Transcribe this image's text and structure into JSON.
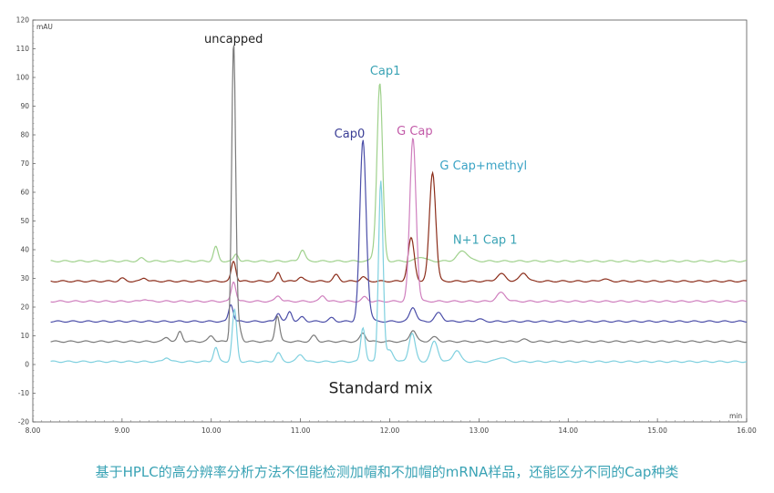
{
  "chart_data": {
    "type": "line",
    "title": "",
    "xlabel": "min",
    "ylabel": "mAU",
    "xlim": [
      8.0,
      16.0
    ],
    "ylim": [
      -20,
      120
    ],
    "x_ticks": [
      8.0,
      9.0,
      10.0,
      11.0,
      12.0,
      13.0,
      14.0,
      15.0,
      16.0
    ],
    "x_tick_labels": [
      "8.00",
      "9.00",
      "10.00",
      "11.00",
      "12.00",
      "13.00",
      "14.00",
      "15.00",
      "16.00"
    ],
    "y_ticks": [
      -20,
      -10,
      0,
      10,
      20,
      30,
      40,
      50,
      60,
      70,
      80,
      90,
      100,
      110,
      120
    ],
    "y_tick_labels": [
      "-20",
      "-10",
      "0",
      "10",
      "20",
      "30",
      "40",
      "50",
      "60",
      "70",
      "80",
      "90",
      "100",
      "110",
      "120"
    ],
    "series": [
      {
        "color": "#9fd18c",
        "baseline": 36,
        "peaks": [
          [
            9.22,
            1.0,
            0.03
          ],
          [
            10.05,
            5,
            0.025
          ],
          [
            10.28,
            2.5,
            0.025
          ],
          [
            11.02,
            4,
            0.03
          ],
          [
            11.87,
            8,
            0.04
          ],
          [
            11.89,
            55,
            0.03
          ],
          [
            12.82,
            3.5,
            0.06
          ],
          [
            12.35,
            1.5,
            0.05
          ]
        ]
      },
      {
        "color": "#8b2d1a",
        "baseline": 29,
        "peaks": [
          [
            9.0,
            1.0,
            0.03
          ],
          [
            9.25,
            1.2,
            0.03
          ],
          [
            10.25,
            7,
            0.025
          ],
          [
            10.75,
            3,
            0.025
          ],
          [
            11.0,
            1.5,
            0.03
          ],
          [
            11.4,
            2.2,
            0.03
          ],
          [
            11.7,
            1.5,
            0.03
          ],
          [
            12.24,
            15,
            0.035
          ],
          [
            12.48,
            38,
            0.035
          ],
          [
            13.25,
            2.5,
            0.05
          ],
          [
            13.5,
            3,
            0.04
          ],
          [
            14.4,
            0.8,
            0.04
          ]
        ]
      },
      {
        "color": "#cf7fbe",
        "baseline": 22,
        "peaks": [
          [
            9.25,
            0.8,
            0.03
          ],
          [
            10.25,
            7,
            0.025
          ],
          [
            10.75,
            2,
            0.03
          ],
          [
            11.25,
            2,
            0.03
          ],
          [
            11.72,
            1.5,
            0.03
          ],
          [
            12.26,
            57,
            0.035
          ],
          [
            13.25,
            3,
            0.05
          ]
        ]
      },
      {
        "color": "#4b4ea8",
        "baseline": 15,
        "peaks": [
          [
            10.22,
            6,
            0.025
          ],
          [
            10.75,
            3,
            0.025
          ],
          [
            10.88,
            3.5,
            0.025
          ],
          [
            11.02,
            1.5,
            0.03
          ],
          [
            11.35,
            1.2,
            0.03
          ],
          [
            11.7,
            63,
            0.035
          ],
          [
            11.78,
            2,
            0.03
          ],
          [
            12.26,
            5,
            0.035
          ],
          [
            12.55,
            3,
            0.04
          ],
          [
            13.0,
            0.8,
            0.04
          ]
        ]
      },
      {
        "color": "#7a7a7a",
        "baseline": 8,
        "peaks": [
          [
            9.65,
            3.5,
            0.025
          ],
          [
            9.5,
            1.5,
            0.03
          ],
          [
            10.0,
            2,
            0.03
          ],
          [
            10.25,
            103,
            0.022
          ],
          [
            10.3,
            6,
            0.03
          ],
          [
            10.74,
            9,
            0.025
          ],
          [
            11.15,
            2,
            0.03
          ],
          [
            11.7,
            3,
            0.03
          ],
          [
            12.26,
            4,
            0.035
          ],
          [
            12.5,
            1.5,
            0.04
          ],
          [
            13.5,
            0.7,
            0.04
          ]
        ]
      },
      {
        "color": "#7fd0df",
        "baseline": 1,
        "peaks": [
          [
            9.5,
            1.5,
            0.03
          ],
          [
            10.05,
            5,
            0.025
          ],
          [
            10.26,
            18,
            0.025
          ],
          [
            10.75,
            3,
            0.03
          ],
          [
            11.0,
            2.5,
            0.035
          ],
          [
            11.7,
            12,
            0.025
          ],
          [
            11.9,
            63,
            0.025
          ],
          [
            12.0,
            4,
            0.04
          ],
          [
            12.25,
            10,
            0.035
          ],
          [
            12.5,
            7,
            0.04
          ],
          [
            12.75,
            4,
            0.04
          ],
          [
            13.25,
            1.5,
            0.05
          ]
        ]
      }
    ],
    "annotations": [
      {
        "text": "uncapped",
        "x": 10.25,
        "y": 112,
        "color": "#222222"
      },
      {
        "text": "Cap1",
        "x": 11.95,
        "y": 101,
        "color": "#3aa3b5"
      },
      {
        "text": "Cap0",
        "x": 11.55,
        "y": 79,
        "color": "#3a3d95"
      },
      {
        "text": "G Cap",
        "x": 12.28,
        "y": 80,
        "color": "#c25aa8"
      },
      {
        "text": "G Cap+methyl",
        "x": 13.05,
        "y": 68,
        "color": "#3aa3c5"
      },
      {
        "text": "N+1 Cap 1",
        "x": 13.07,
        "y": 42,
        "color": "#3aa3b5"
      },
      {
        "text": "Standard mix",
        "x": 11.9,
        "y": -10,
        "color": "#222222"
      }
    ]
  },
  "caption": "基于HPLC的高分辨率分析方法不但能检测加帽和不加帽的mRNA样品，还能区分不同的Cap种类"
}
